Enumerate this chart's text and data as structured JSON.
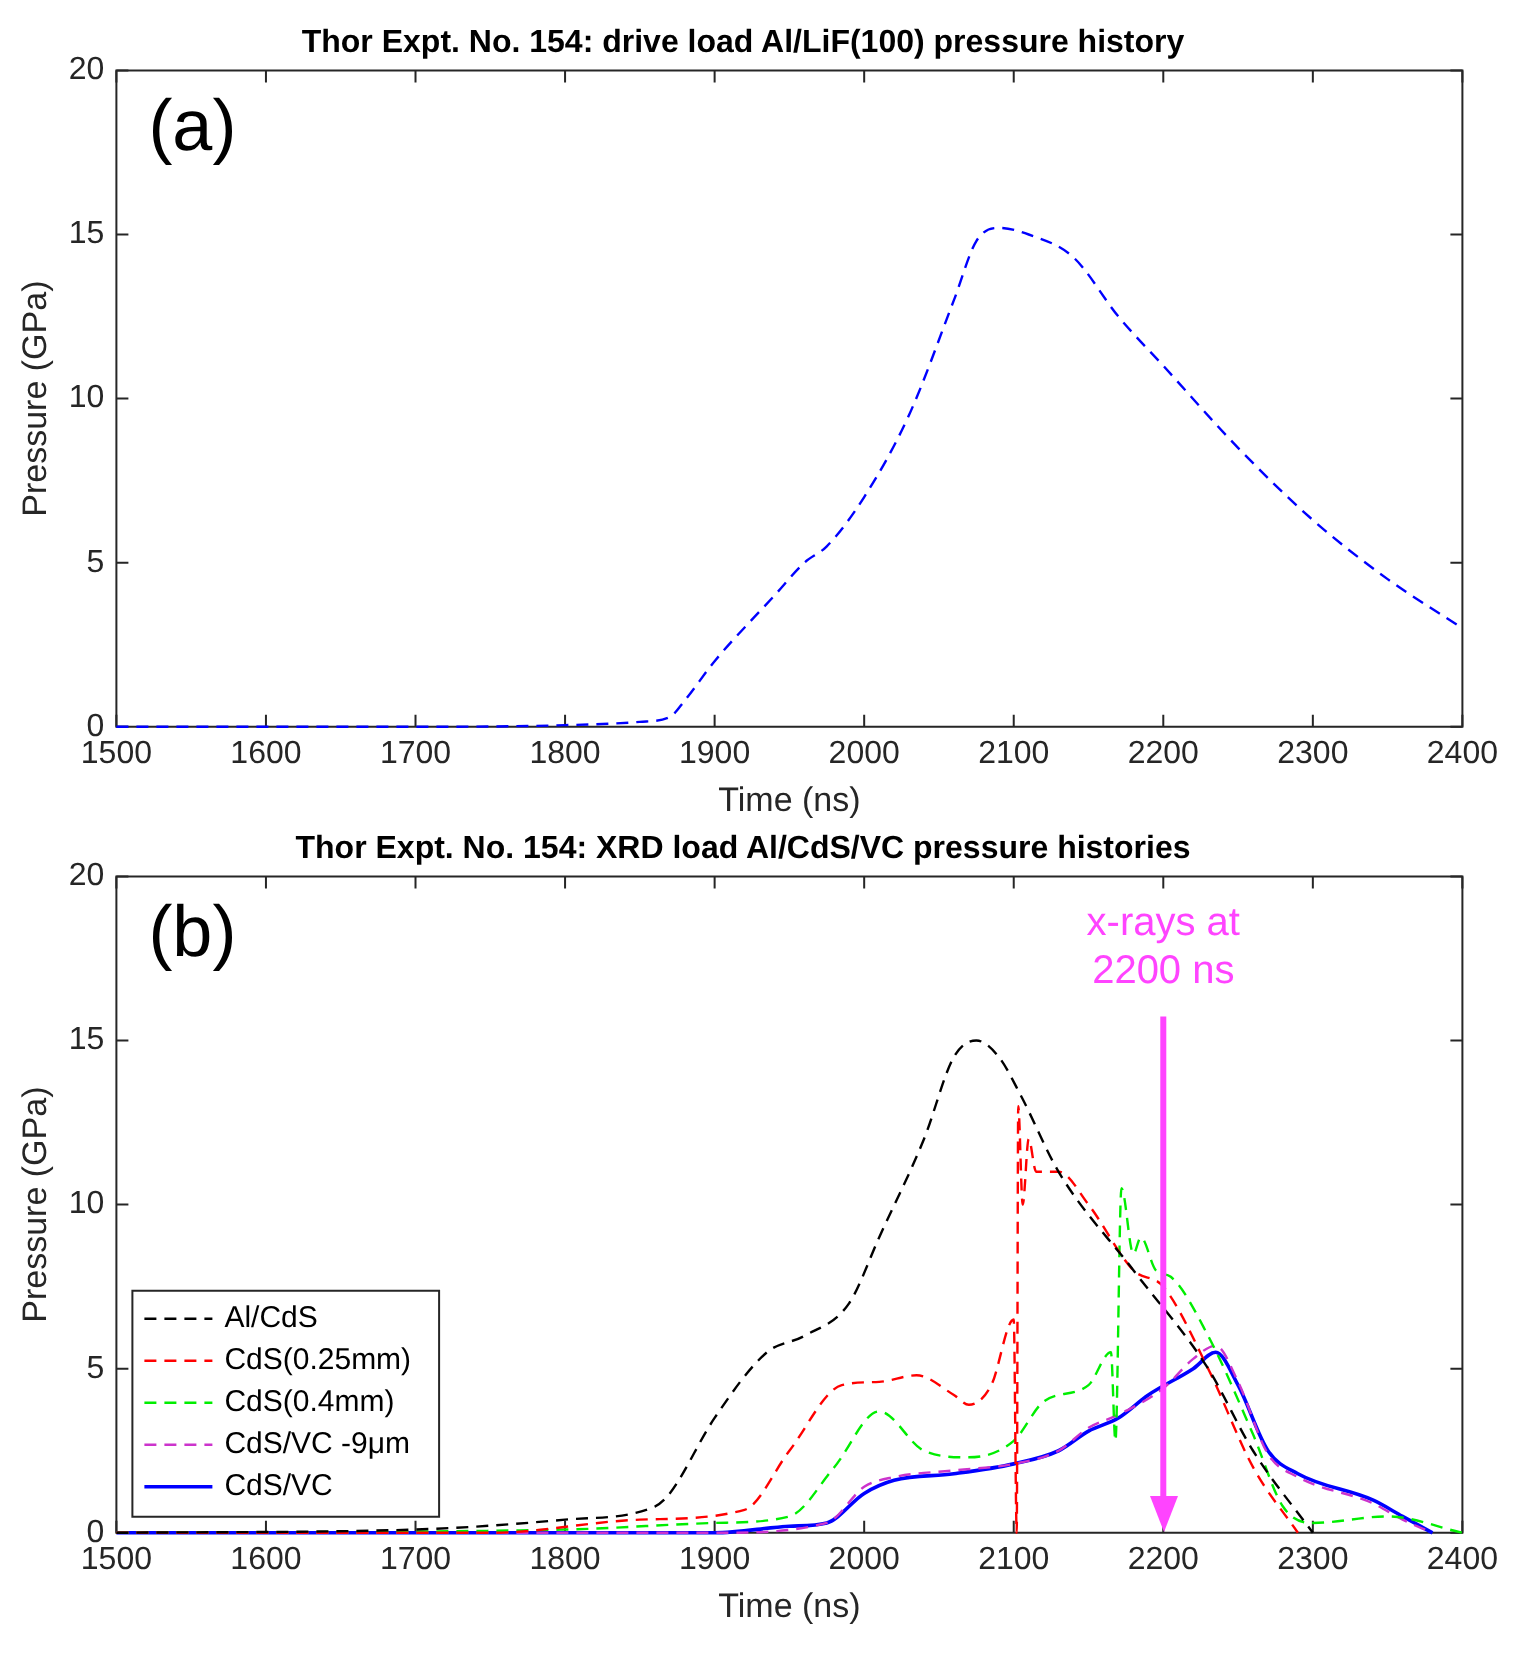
{
  "chart_data": [
    {
      "type": "line",
      "title": "Thor Expt. No. 154: drive load Al/LiF(100) pressure history",
      "xlabel": "Time (ns)",
      "ylabel": "Pressure (GPa)",
      "annotations": [
        "(a)"
      ],
      "xlim": [
        1500,
        2400
      ],
      "xticks": [
        1500,
        1600,
        1700,
        1800,
        1900,
        2000,
        2100,
        2200,
        2300,
        2400
      ],
      "ylim": [
        0,
        20
      ],
      "yticks": [
        0,
        5,
        10,
        15,
        20
      ],
      "grid": false,
      "legend": false,
      "marker": "none",
      "series": [
        {
          "color": "#0000ff",
          "line_style": "dashed",
          "x": [
            1500,
            1700,
            1800,
            1850,
            1870,
            1880,
            1900,
            1940,
            1960,
            1975,
            2000,
            2030,
            2060,
            2075,
            2090,
            2110,
            2140,
            2170,
            2200,
            2250,
            2300,
            2350,
            2400
          ],
          "values": [
            0,
            0,
            0.05,
            0.15,
            0.3,
            0.8,
            2,
            4,
            5,
            5.5,
            7,
            9.5,
            13,
            14.8,
            15.2,
            15,
            14.3,
            12.5,
            11,
            8.5,
            6.3,
            4.5,
            3
          ]
        }
      ]
    },
    {
      "type": "line",
      "title": "Thor Expt. No. 154: XRD load Al/CdS/VC pressure histories",
      "xlabel": "Time (ns)",
      "ylabel": "Pressure (GPa)",
      "annotations": [
        "(b)"
      ],
      "xlim": [
        1500,
        2400
      ],
      "xticks": [
        1500,
        1600,
        1700,
        1800,
        1900,
        2000,
        2100,
        2200,
        2300,
        2400
      ],
      "ylim": [
        0,
        20
      ],
      "yticks": [
        0,
        5,
        10,
        15,
        20
      ],
      "grid": false,
      "legend": "bottom left",
      "marker": "none",
      "ref_lines": [
        {
          "axis": "x",
          "value": 2200,
          "label": "x-rays at 2200 ns",
          "color": "#ff44ff"
        }
      ],
      "series": [
        {
          "name": "Al/CdS",
          "color": "#000000",
          "line_style": "dashed",
          "x": [
            1500,
            1700,
            1800,
            1860,
            1870,
            1900,
            1935,
            1960,
            1990,
            2010,
            2040,
            2060,
            2075,
            2090,
            2105,
            2130,
            2180,
            2230,
            2260,
            2300
          ],
          "values": [
            0,
            0.1,
            0.4,
            0.8,
            1.2,
            3.5,
            5.5,
            6,
            7,
            9,
            12,
            14.5,
            15,
            14.5,
            13.3,
            11,
            8,
            5,
            2.5,
            0
          ]
        },
        {
          "name": "CdS(0.25mm)",
          "color": "#ff0000",
          "line_style": "dashed",
          "x": [
            1500,
            1750,
            1850,
            1920,
            1950,
            1985,
            2010,
            2035,
            2060,
            2070,
            2085,
            2100,
            2102,
            2103,
            2106,
            2110,
            2115,
            2130,
            2150,
            2180,
            2200,
            2230,
            2260,
            2290
          ],
          "values": [
            0,
            0,
            0.4,
            0.7,
            2.5,
            4.5,
            4.6,
            4.8,
            4.2,
            3.9,
            4.5,
            6.5,
            0,
            13,
            10,
            12,
            11,
            11,
            10,
            8,
            7.5,
            5,
            2,
            0
          ]
        },
        {
          "name": "CdS(0.4mm)",
          "color": "#00ee00",
          "line_style": "dashed",
          "x": [
            1500,
            1800,
            1900,
            1950,
            1980,
            2010,
            2040,
            2070,
            2100,
            2120,
            2150,
            2165,
            2168,
            2172,
            2180,
            2185,
            2195,
            2205,
            2230,
            2260,
            2280,
            2300,
            2350,
            2400
          ],
          "values": [
            0,
            0.1,
            0.3,
            0.5,
            2,
            3.7,
            2.5,
            2.3,
            2.8,
            4,
            4.5,
            5.5,
            2.8,
            10.5,
            8.5,
            9,
            8,
            7.8,
            6,
            3,
            0.8,
            0.3,
            0.5,
            0
          ]
        },
        {
          "name": "CdS/VC -9μm",
          "color": "#cc33cc",
          "line_style": "dashed",
          "x": [
            1500,
            1900,
            1975,
            2000,
            2020,
            2060,
            2100,
            2130,
            2150,
            2170,
            2200,
            2220,
            2235,
            2250,
            2270,
            2290,
            2340,
            2360,
            2380
          ],
          "values": [
            0,
            0,
            0.3,
            1.4,
            1.7,
            1.9,
            2.1,
            2.5,
            3.2,
            3.6,
            4.4,
            5.3,
            5.7,
            4.6,
            2.4,
            1.7,
            0.9,
            0.4,
            0
          ]
        },
        {
          "name": "CdS/VC",
          "color": "#0000ff",
          "line_style": "solid",
          "x": [
            1500,
            1900,
            1950,
            1975,
            2000,
            2020,
            2060,
            2100,
            2130,
            2150,
            2170,
            2190,
            2220,
            2235,
            2250,
            2270,
            2290,
            2340,
            2360,
            2380
          ],
          "values": [
            0,
            0,
            0.2,
            0.3,
            1.2,
            1.6,
            1.8,
            2.1,
            2.5,
            3.1,
            3.5,
            4.2,
            5,
            5.5,
            4.5,
            2.5,
            1.8,
            1,
            0.5,
            0
          ]
        }
      ]
    }
  ]
}
